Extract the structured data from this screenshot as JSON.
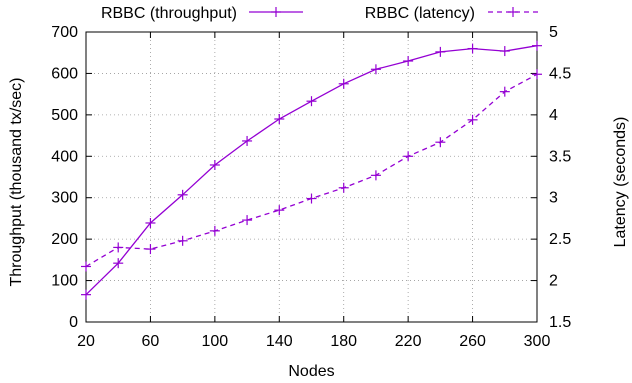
{
  "chart_data": {
    "type": "line",
    "title": "",
    "xlabel": "Nodes",
    "ylabel": "Throughput (thousand tx/sec)",
    "y2label": "Latency (seconds)",
    "x": [
      20,
      40,
      60,
      80,
      100,
      120,
      140,
      160,
      180,
      200,
      220,
      240,
      260,
      280,
      300
    ],
    "xticks": [
      "20",
      "60",
      "100",
      "140",
      "180",
      "220",
      "260",
      "300"
    ],
    "yticks": [
      "0",
      "100",
      "200",
      "300",
      "400",
      "500",
      "600",
      "700"
    ],
    "y2ticks": [
      "1.5",
      "2",
      "2.5",
      "3",
      "3.5",
      "4",
      "4.5",
      "5"
    ],
    "xlim": [
      20,
      300
    ],
    "ylim": [
      0,
      700
    ],
    "y2lim": [
      1.5,
      5
    ],
    "grid": true,
    "legend_position": "top",
    "series": [
      {
        "name": "RBBC (throughput)",
        "axis": "left",
        "style": "solid",
        "color": "#9400d3",
        "values": [
          66,
          142,
          239,
          307,
          379,
          437,
          490,
          533,
          575,
          610,
          630,
          652,
          660,
          654,
          667
        ]
      },
      {
        "name": "RBBC (latency)",
        "axis": "right",
        "style": "dashed",
        "color": "#9400d3",
        "values": [
          2.17,
          2.4,
          2.38,
          2.48,
          2.6,
          2.73,
          2.85,
          2.99,
          3.12,
          3.27,
          3.5,
          3.67,
          3.94,
          4.28,
          4.49
        ]
      }
    ]
  }
}
